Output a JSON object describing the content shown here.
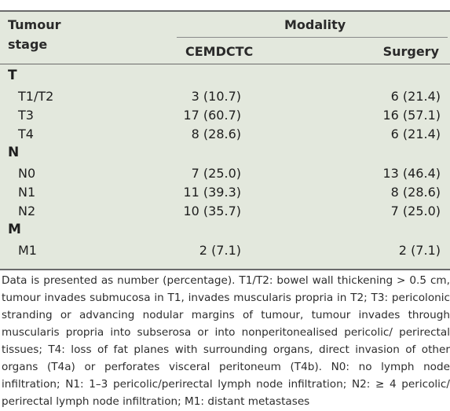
{
  "table": {
    "header": {
      "stage_line1": "Tumour",
      "stage_line2": "stage",
      "modality": "Modality",
      "col1": "CEMDCTC",
      "col2": "Surgery"
    },
    "groups": [
      {
        "label": "T",
        "rows": [
          {
            "stage": "T1/T2",
            "cemdctc": "3 (10.7)",
            "surgery": "6 (21.4)"
          },
          {
            "stage": "T3",
            "cemdctc": "17 (60.7)",
            "surgery": "16 (57.1)"
          },
          {
            "stage": "T4",
            "cemdctc": "8 (28.6)",
            "surgery": "6 (21.4)"
          }
        ]
      },
      {
        "label": "N",
        "rows": [
          {
            "stage": "N0",
            "cemdctc": "7 (25.0)",
            "surgery": "13 (46.4)"
          },
          {
            "stage": "N1",
            "cemdctc": "11 (39.3)",
            "surgery": "8 (28.6)"
          },
          {
            "stage": "N2",
            "cemdctc": "10 (35.7)",
            "surgery": "7 (25.0)"
          }
        ]
      },
      {
        "label": "M",
        "rows": [
          {
            "stage": "M1",
            "cemdctc": "2 (7.1)",
            "surgery": "2 (7.1)"
          }
        ]
      }
    ]
  },
  "footnote": "Data is presented as number (percentage). T1/T2: bowel wall thickening > 0.5 cm, tumour invades submucosa in T1, invades muscularis propria in T2; T3: pericolonic stranding or advancing nodular margins of tumour, tumour invades through muscularis propria into subserosa or into nonperitonealised pericolic/ perirectal tissues; T4: loss of fat planes with surrounding organs, direct invasion of other organs (T4a) or perforates visceral peritoneum (T4b). N0: no lymph node infiltration; N1: 1–3 pericolic/perirectal lymph node infiltration; N2: ≥ 4 pericolic/ perirectal lymph node infiltration; M1: distant metastases"
}
